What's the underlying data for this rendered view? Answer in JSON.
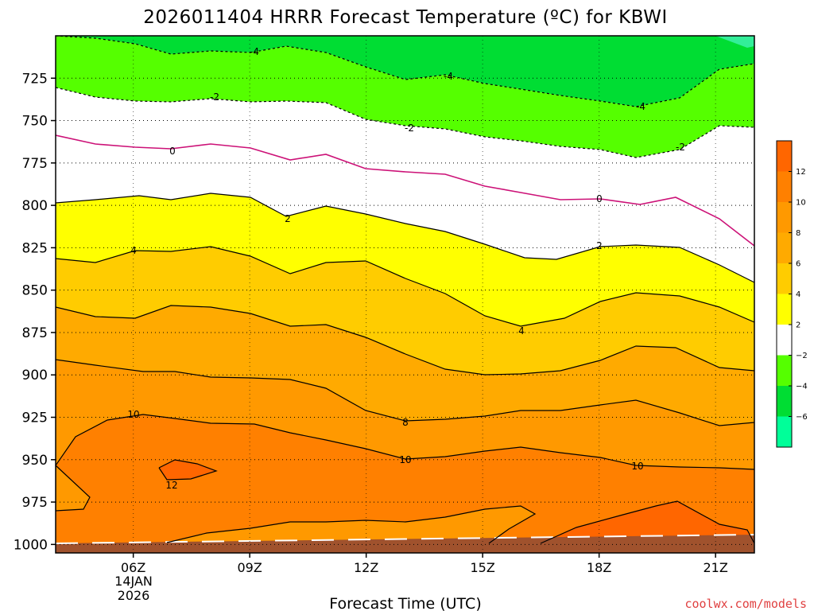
{
  "chart_data": {
    "type": "heatmap",
    "title": "2026011404 HRRR Forecast Temperature (ºC) for KBWI",
    "xlabel": "Forecast Time (UTC)",
    "ylabel": "",
    "x_ticks": [
      "06Z",
      "09Z",
      "12Z",
      "15Z",
      "18Z",
      "21Z"
    ],
    "x_date": [
      "14JAN",
      "2026"
    ],
    "xlim_hours_utc": [
      4,
      22
    ],
    "y_ticks": [
      725,
      750,
      775,
      800,
      825,
      850,
      875,
      900,
      925,
      950,
      975,
      1000
    ],
    "ylim_hPa": [
      700,
      1005
    ],
    "y_inverted": true,
    "grid": "dotted",
    "colorbar": {
      "ticks": [
        12,
        10,
        8,
        6,
        4,
        2,
        -2,
        -4,
        -6
      ],
      "colors": [
        "#ff6600",
        "#ff8000",
        "#ff9900",
        "#ffaa00",
        "#ffcc00",
        "#ffff00",
        "#ffffff",
        "#55ff00",
        "#00dd33",
        "#00ff99"
      ]
    },
    "contour_labels": [
      "-4",
      "-4",
      "-4",
      "-2",
      "-2",
      "-2",
      "0",
      "0",
      "2",
      "2",
      "4",
      "4",
      "8",
      "10",
      "10",
      "10",
      "12"
    ],
    "surface": "ground shaded brown below about 1000 hPa",
    "credit": "coolwx.com/models"
  }
}
